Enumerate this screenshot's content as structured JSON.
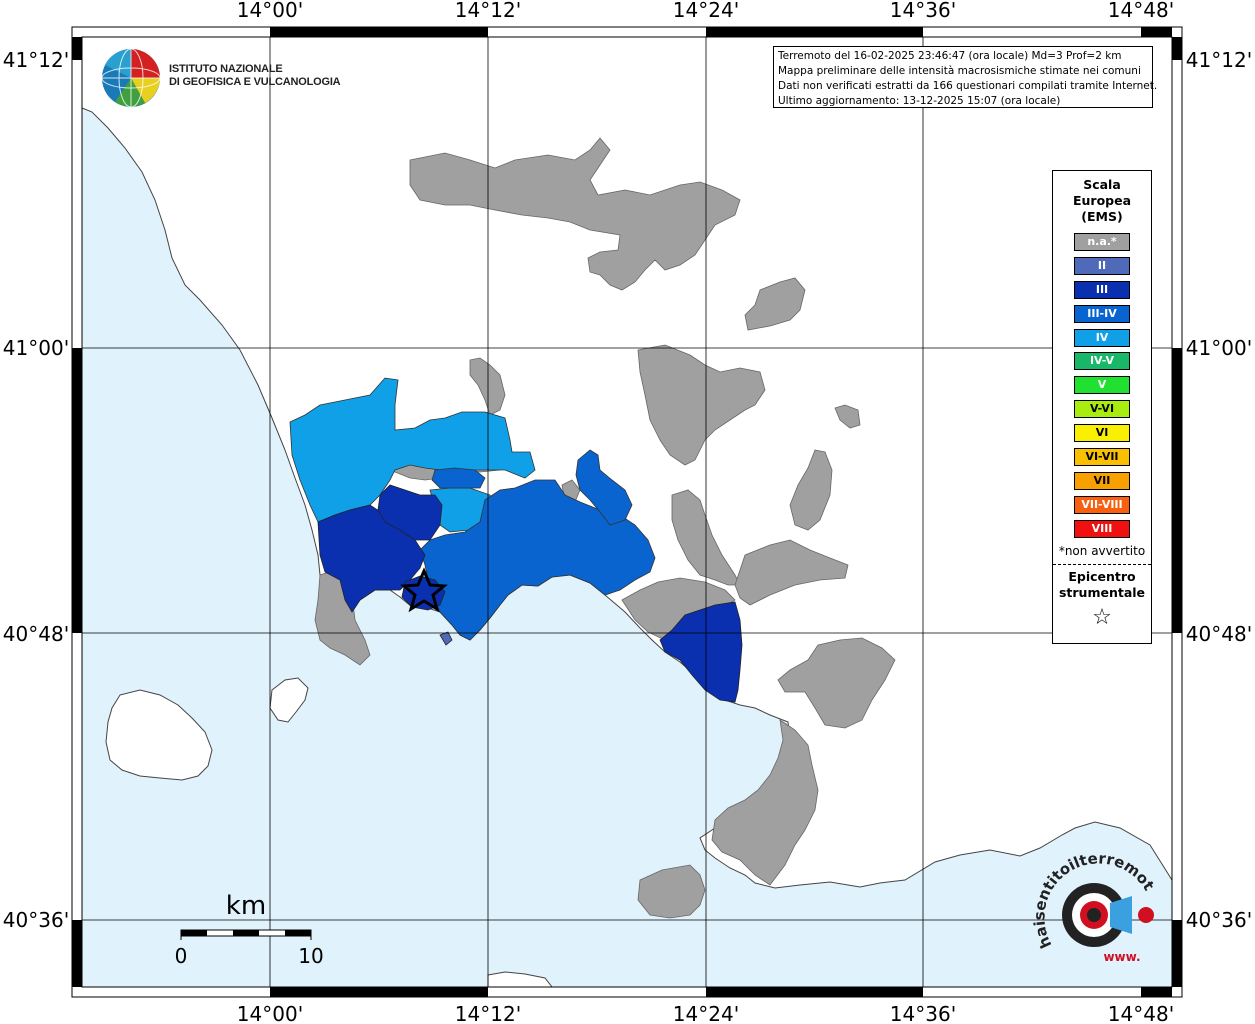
{
  "map": {
    "lon_labels": [
      "14°00'",
      "14°12'",
      "14°24'",
      "14°36'",
      "14°48'"
    ],
    "lat_labels": [
      "41°12'",
      "41°00'",
      "40°48'",
      "40°36'"
    ]
  },
  "logo": {
    "line1": "ISTITUTO NAZIONALE",
    "line2": "DI GEOFISICA E VULCANOLOGIA"
  },
  "info": {
    "line1": "Terremoto del 16-02-2025 23:46:47 (ora locale) Md=3 Prof=2 km",
    "line2": "Mappa preliminare delle intensità macrosismiche stimate nei comuni",
    "line3": "Dati non verificati estratti da 166 questionari compilati tramite Internet.",
    "line4": "Ultimo aggiornamento: 13-12-2025 15:07 (ora locale)"
  },
  "legend": {
    "title1": "Scala",
    "title2": "Europea",
    "title3": "(EMS)",
    "items": [
      {
        "label": "n.a.*",
        "color": "#a0a0a0"
      },
      {
        "label": "II",
        "color": "#4f6ab8"
      },
      {
        "label": "III",
        "color": "#0a30b0"
      },
      {
        "label": "III-IV",
        "color": "#0a64d0"
      },
      {
        "label": "IV",
        "color": "#10a0e8"
      },
      {
        "label": "IV-V",
        "color": "#18b868"
      },
      {
        "label": "V",
        "color": "#20e030"
      },
      {
        "label": "V-VI",
        "color": "#a8ec10"
      },
      {
        "label": "VI",
        "color": "#f8f000"
      },
      {
        "label": "VI-VII",
        "color": "#f8c000"
      },
      {
        "label": "VII",
        "color": "#f8a000"
      },
      {
        "label": "VII-VIII",
        "color": "#f86010"
      },
      {
        "label": "VIII",
        "color": "#f01010"
      }
    ],
    "note": "*non avvertito",
    "epi1": "Epicentro",
    "epi2": "strumentale",
    "star": "☆"
  },
  "scale_bar": {
    "unit": "km",
    "start": "0",
    "end": "10"
  },
  "badge": {
    "text": "haisentitoilterremoto.it",
    "url": "www."
  },
  "colors": {
    "sea": "#e0f2fc",
    "land": "#ffffff",
    "na": "#a0a0a0",
    "ii": "#4f6ab8",
    "iii": "#0a30b0",
    "iii_iv": "#0a64d0",
    "iv": "#10a0e8"
  }
}
